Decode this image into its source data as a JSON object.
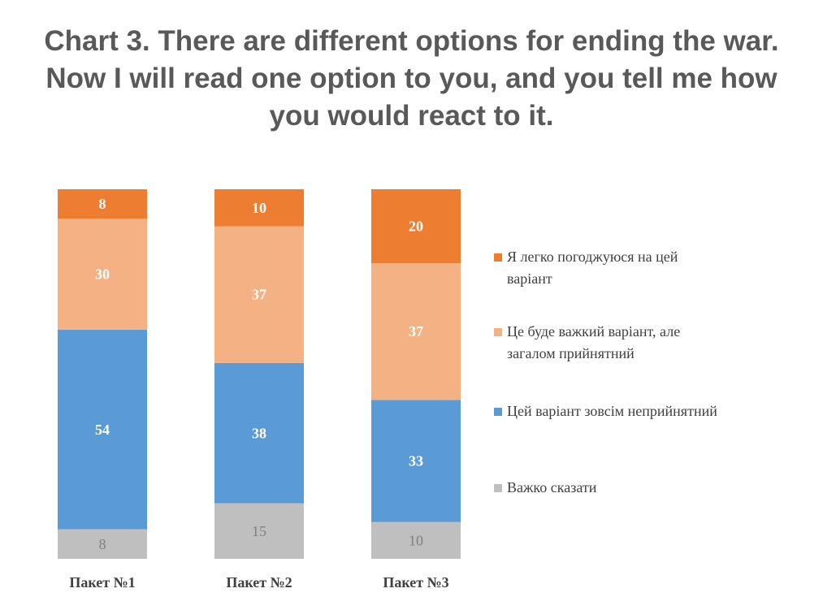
{
  "title_lines": [
    "Chart 3. There are different options for ending the war.",
    "Now I will read one option to you, and you tell me how",
    "you would react to it."
  ],
  "chart_data": {
    "type": "bar",
    "stacked": true,
    "orientation": "vertical",
    "title": "Chart 3. There are different options for ending the war. Now I will read one option to you, and you tell me how you would react to it.",
    "categories": [
      "Пакет №1",
      "Пакет №2",
      "Пакет №3"
    ],
    "series": [
      {
        "name": "Важко сказати",
        "values": [
          8,
          15,
          10
        ],
        "color": "#BFBFBF"
      },
      {
        "name": "Цей варіант зовсім неприйнятний",
        "values": [
          54,
          38,
          33
        ],
        "color": "#5B9BD5"
      },
      {
        "name": "Це буде важкий варіант, але загалом прийнятний",
        "values": [
          30,
          37,
          37
        ],
        "color": "#F4B183"
      },
      {
        "name": "Я легко погоджуюся на цей варіант",
        "values": [
          8,
          10,
          20
        ],
        "color": "#ED7D31"
      }
    ],
    "legend": {
      "position": "right",
      "order": [
        3,
        2,
        1,
        0
      ],
      "entries": [
        [
          "Я легко погоджуюся на цей",
          "варіант"
        ],
        [
          "Це буде важкий варіант, але",
          "загалом прийнятний"
        ],
        [
          "Цей варіант зовсім неприйнятний"
        ],
        [
          "Важко сказати"
        ]
      ]
    },
    "ylim": [
      0,
      100
    ],
    "grid": false,
    "data_labels": true
  }
}
